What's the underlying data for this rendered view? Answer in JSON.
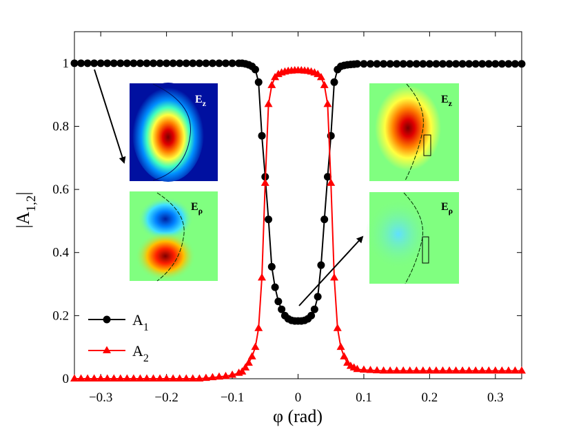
{
  "chart_data": {
    "type": "line",
    "title": "",
    "xlabel": "φ (rad)",
    "ylabel": "|A",
    "ylabel_sub": "1,2",
    "xlim": [
      -0.34,
      0.34
    ],
    "ylim": [
      0,
      1.1
    ],
    "xticks": [
      -0.3,
      -0.2,
      -0.1,
      0,
      0.1,
      0.2,
      0.3
    ],
    "xtick_labels": [
      "−0.3",
      "−0.2",
      "−0.1",
      "0",
      "0.1",
      "0.2",
      "0.3"
    ],
    "yticks": [
      0,
      0.2,
      0.4,
      0.6,
      0.8,
      1
    ],
    "ytick_labels": [
      "0",
      "0.2",
      "0.4",
      "0.6",
      "0.8",
      "1"
    ],
    "legend_position": "bottom-left",
    "series": [
      {
        "name": "A",
        "name_sub": "1",
        "color": "#000000",
        "marker": "circle",
        "x": [
          -0.34,
          -0.33,
          -0.32,
          -0.31,
          -0.3,
          -0.29,
          -0.28,
          -0.27,
          -0.26,
          -0.25,
          -0.24,
          -0.23,
          -0.22,
          -0.21,
          -0.2,
          -0.19,
          -0.18,
          -0.17,
          -0.16,
          -0.15,
          -0.14,
          -0.13,
          -0.12,
          -0.11,
          -0.1,
          -0.09,
          -0.085,
          -0.08,
          -0.075,
          -0.07,
          -0.065,
          -0.06,
          -0.055,
          -0.05,
          -0.045,
          -0.04,
          -0.035,
          -0.03,
          -0.025,
          -0.02,
          -0.015,
          -0.01,
          -0.005,
          0,
          0.005,
          0.01,
          0.015,
          0.02,
          0.025,
          0.03,
          0.035,
          0.04,
          0.045,
          0.05,
          0.055,
          0.06,
          0.065,
          0.07,
          0.075,
          0.08,
          0.085,
          0.09,
          0.1,
          0.11,
          0.12,
          0.13,
          0.14,
          0.15,
          0.16,
          0.17,
          0.18,
          0.19,
          0.2,
          0.21,
          0.22,
          0.23,
          0.24,
          0.25,
          0.26,
          0.27,
          0.28,
          0.29,
          0.3,
          0.31,
          0.32,
          0.33,
          0.34
        ],
        "y": [
          1,
          1,
          1,
          1,
          1,
          1,
          1,
          1,
          1,
          1,
          1,
          1,
          1,
          1,
          1,
          1,
          1,
          1,
          1,
          1,
          1,
          1,
          1,
          1,
          1,
          1,
          1,
          0.998,
          0.995,
          0.99,
          0.98,
          0.94,
          0.77,
          0.64,
          0.505,
          0.355,
          0.29,
          0.245,
          0.22,
          0.2,
          0.19,
          0.185,
          0.183,
          0.183,
          0.183,
          0.185,
          0.19,
          0.2,
          0.22,
          0.26,
          0.36,
          0.505,
          0.64,
          0.77,
          0.94,
          0.98,
          0.99,
          0.993,
          0.995,
          0.996,
          0.997,
          0.998,
          0.998,
          0.998,
          0.998,
          0.998,
          0.998,
          0.998,
          0.998,
          0.998,
          0.998,
          0.998,
          0.998,
          0.998,
          0.998,
          0.998,
          0.998,
          0.998,
          0.998,
          0.998,
          0.998,
          0.998,
          0.998,
          0.998,
          0.998,
          0.998,
          0.998
        ]
      },
      {
        "name": "A",
        "name_sub": "2",
        "color": "#ff0000",
        "marker": "triangle",
        "x": [
          -0.34,
          -0.33,
          -0.32,
          -0.31,
          -0.3,
          -0.29,
          -0.28,
          -0.27,
          -0.26,
          -0.25,
          -0.24,
          -0.23,
          -0.22,
          -0.21,
          -0.2,
          -0.19,
          -0.18,
          -0.17,
          -0.16,
          -0.15,
          -0.14,
          -0.13,
          -0.12,
          -0.11,
          -0.1,
          -0.09,
          -0.085,
          -0.08,
          -0.075,
          -0.07,
          -0.065,
          -0.06,
          -0.055,
          -0.05,
          -0.045,
          -0.04,
          -0.035,
          -0.03,
          -0.025,
          -0.02,
          -0.015,
          -0.01,
          -0.005,
          0,
          0.005,
          0.01,
          0.015,
          0.02,
          0.025,
          0.03,
          0.035,
          0.04,
          0.045,
          0.05,
          0.055,
          0.06,
          0.065,
          0.07,
          0.075,
          0.08,
          0.085,
          0.09,
          0.1,
          0.11,
          0.12,
          0.13,
          0.14,
          0.15,
          0.16,
          0.17,
          0.18,
          0.19,
          0.2,
          0.21,
          0.22,
          0.23,
          0.24,
          0.25,
          0.26,
          0.27,
          0.28,
          0.29,
          0.3,
          0.31,
          0.32,
          0.33,
          0.34
        ],
        "y": [
          0,
          0,
          0,
          0,
          0,
          0,
          0,
          0,
          0,
          0,
          0,
          0,
          0,
          0,
          0,
          0,
          0,
          0,
          0,
          0,
          0.002,
          0.004,
          0.006,
          0.008,
          0.012,
          0.018,
          0.022,
          0.035,
          0.05,
          0.07,
          0.1,
          0.16,
          0.32,
          0.62,
          0.87,
          0.93,
          0.955,
          0.965,
          0.97,
          0.973,
          0.975,
          0.976,
          0.977,
          0.977,
          0.977,
          0.976,
          0.975,
          0.973,
          0.97,
          0.965,
          0.955,
          0.93,
          0.87,
          0.62,
          0.32,
          0.16,
          0.1,
          0.07,
          0.05,
          0.04,
          0.035,
          0.03,
          0.028,
          0.027,
          0.026,
          0.025,
          0.025,
          0.025,
          0.025,
          0.025,
          0.025,
          0.025,
          0.025,
          0.025,
          0.025,
          0.025,
          0.025,
          0.025,
          0.025,
          0.025,
          0.025,
          0.025,
          0.025,
          0.025,
          0.025,
          0.025,
          0.025
        ]
      }
    ],
    "insets": [
      {
        "name": "inset-left-ez",
        "label": "E",
        "label_sub": "z"
      },
      {
        "name": "inset-left-erho",
        "label": "E",
        "label_sub": "ρ"
      },
      {
        "name": "inset-right-ez",
        "label": "E",
        "label_sub": "z"
      },
      {
        "name": "inset-right-erho",
        "label": "E",
        "label_sub": "ρ"
      }
    ]
  }
}
